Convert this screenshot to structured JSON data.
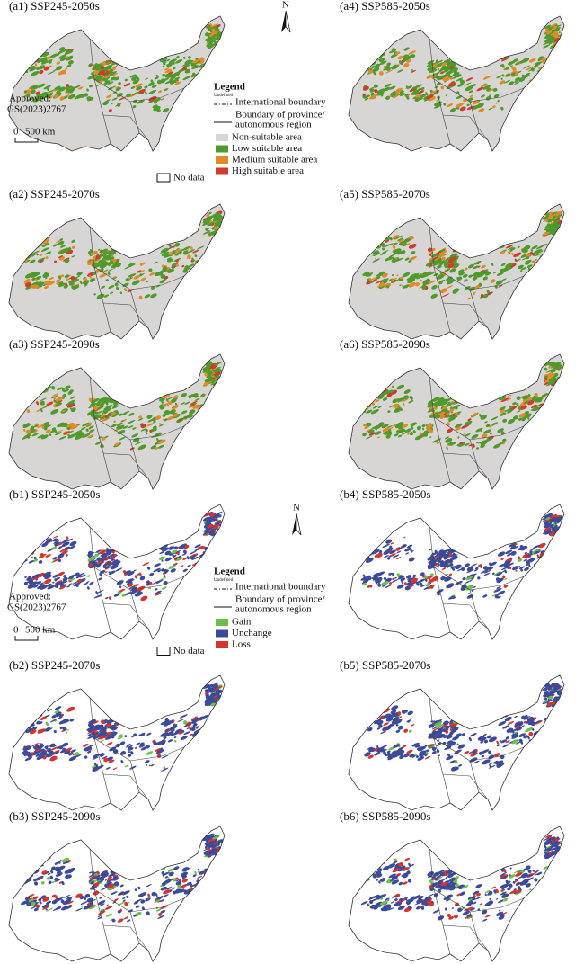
{
  "figure_a": {
    "panels": [
      "(a1) SSP245-2050s",
      "(a2) SSP245-2070s",
      "(a3) SSP245-2090s",
      "(a4) SSP585-2050s",
      "(a5) SSP585-2070s",
      "(a6) SSP585-2090s"
    ],
    "north": "N",
    "approval": [
      "Approved:",
      "GS(2023)2767"
    ],
    "scale_bar": [
      "0",
      "500 km"
    ],
    "legend": {
      "title": "Legend",
      "subtitle": "Undefined",
      "international_boundary": "International boundary",
      "province_boundary": [
        "Boundary of province/",
        "autonomous region"
      ],
      "classes": [
        {
          "label": "Non-suitable area",
          "color": "#d8d5d5"
        },
        {
          "label": "Low suitable area",
          "color": "#4e9a2c"
        },
        {
          "label": "Medium suitable area",
          "color": "#e08a2a"
        },
        {
          "label": "High suitable area",
          "color": "#d23a2a"
        }
      ],
      "no_data": "No data"
    }
  },
  "figure_b": {
    "panels": [
      "(b1) SSP245-2050s",
      "(b2) SSP245-2070s",
      "(b3) SSP245-2090s",
      "(b4) SSP585-2050s",
      "(b5) SSP585-2070s",
      "(b6) SSP585-2090s"
    ],
    "north": "N",
    "approval": [
      "Approved:",
      "GS(2023)2767"
    ],
    "scale_bar": [
      "0",
      "500 km"
    ],
    "legend": {
      "title": "Legend",
      "subtitle": "Undefined",
      "international_boundary": "International boundary",
      "province_boundary": [
        "Boundary of province/",
        "autonomous region"
      ],
      "classes": [
        {
          "label": "Gain",
          "color": "#6cc04a"
        },
        {
          "label": "Unchange",
          "color": "#3b4a9a"
        },
        {
          "label": "Loss",
          "color": "#d8332a"
        }
      ],
      "no_data": "No data"
    }
  }
}
